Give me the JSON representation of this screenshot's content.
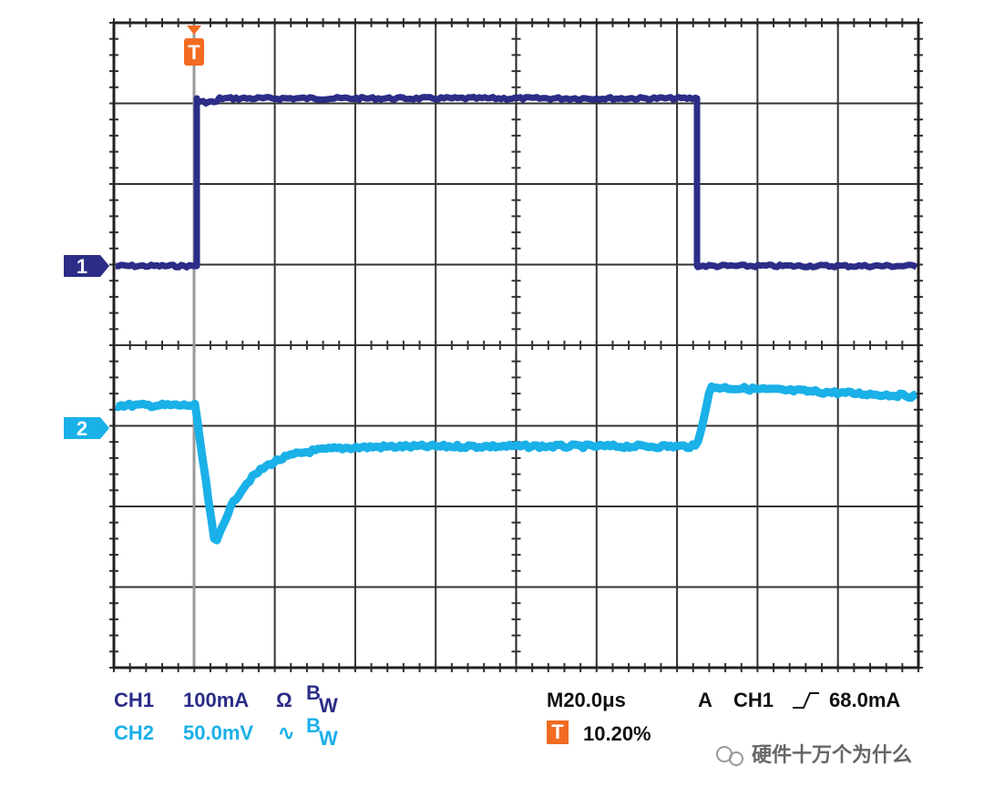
{
  "channel_markers": [
    "1",
    "2"
  ],
  "trigger_marker": "T",
  "readouts": {
    "ch1": {
      "label": "CH1",
      "scale": "100mA",
      "coupling": "Ω",
      "bandwidth": "B",
      "bandwidth_sub": "W"
    },
    "ch2": {
      "label": "CH2",
      "scale": "50.0mV",
      "coupling": "∿",
      "bandwidth": "B",
      "bandwidth_sub": "W"
    }
  },
  "timebase": "M20.0μs",
  "trigger": {
    "mode": "A",
    "source": "CH1",
    "level": "68.0mA"
  },
  "trigger_position": {
    "icon": "T",
    "value": "10.20%"
  },
  "watermark": "硬件十万个为什么"
}
